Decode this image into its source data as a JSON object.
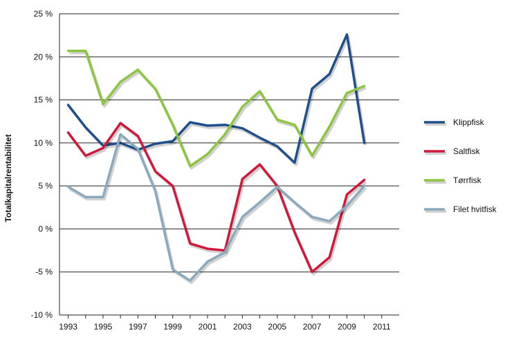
{
  "chart_data": {
    "type": "line",
    "title": "",
    "xlabel": "",
    "ylabel": "Totalkapitalrentabilitet",
    "x": [
      1993,
      1994,
      1995,
      1996,
      1997,
      1998,
      1999,
      2000,
      2001,
      2002,
      2003,
      2004,
      2005,
      2006,
      2007,
      2008,
      2009,
      2010,
      2011
    ],
    "x_tick_labels": [
      "1993",
      "1995",
      "1997",
      "1999",
      "2001",
      "2003",
      "2005",
      "2007",
      "2009",
      "2011"
    ],
    "x_tick_values": [
      1993,
      1995,
      1997,
      1999,
      2001,
      2003,
      2005,
      2007,
      2009,
      2011
    ],
    "y_ticks": [
      {
        "value": 25,
        "label": "25 %"
      },
      {
        "value": 20,
        "label": "20 %"
      },
      {
        "value": 15,
        "label": "15 %"
      },
      {
        "value": 10,
        "label": "10 %"
      },
      {
        "value": 5,
        "label": "5 %"
      },
      {
        "value": 0,
        "label": "0 %"
      },
      {
        "value": -5,
        "label": "-5 %"
      },
      {
        "value": -10,
        "label": "-10 %"
      }
    ],
    "ylim": [
      -10,
      25
    ],
    "grid": "horizontal",
    "legend_position": "right",
    "series": [
      {
        "name": "Klippfisk",
        "color": "#1f4e8c",
        "values": [
          14.4,
          11.8,
          9.7,
          10.0,
          9.2,
          9.9,
          10.2,
          12.4,
          12.0,
          12.1,
          11.7,
          10.6,
          9.6,
          7.7,
          16.3,
          18.0,
          22.6,
          10.0,
          null
        ]
      },
      {
        "name": "Saltfisk",
        "color": "#d0193a",
        "values": [
          11.2,
          8.5,
          9.4,
          12.3,
          10.8,
          6.7,
          5.0,
          -1.7,
          -2.3,
          -2.5,
          5.8,
          7.5,
          5.0,
          -0.4,
          -5.0,
          -3.3,
          4.0,
          5.7,
          null
        ]
      },
      {
        "name": "Tørrfisk",
        "color": "#8cc63f",
        "values": [
          20.7,
          20.7,
          14.5,
          17.1,
          18.5,
          16.3,
          12.1,
          7.3,
          8.7,
          11.0,
          14.2,
          16.0,
          12.7,
          12.1,
          8.5,
          11.9,
          15.8,
          16.6,
          null
        ]
      },
      {
        "name": "Filet hvitfisk",
        "color": "#8aa9bf",
        "values": [
          4.9,
          3.7,
          3.7,
          11.0,
          9.3,
          4.4,
          -4.7,
          -6.0,
          -3.8,
          -2.7,
          1.4,
          3.1,
          4.9,
          3.1,
          1.4,
          0.9,
          2.7,
          5.0,
          null
        ]
      }
    ]
  }
}
